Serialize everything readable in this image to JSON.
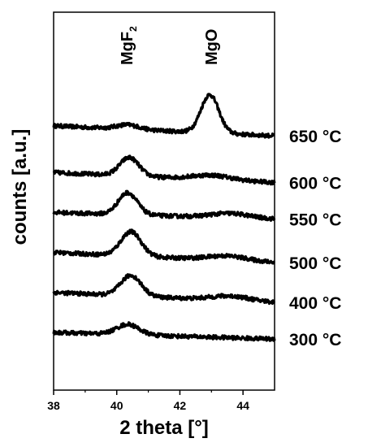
{
  "chart_data": {
    "type": "line",
    "xlabel": "2 theta [°]",
    "ylabel": "counts [a.u.]",
    "xlim": [
      38,
      45
    ],
    "x_ticks": [
      "38",
      "40",
      "42",
      "44"
    ],
    "y_ticks_shown": false,
    "grid": false,
    "legend": "none",
    "annotations": [
      {
        "text": "MgF",
        "subscript": "2",
        "x": 40.4
      },
      {
        "text": "MgO",
        "x": 43.0
      }
    ],
    "series": [
      {
        "name": "650 °C",
        "baseline": 0.72,
        "slope": -0.03,
        "peaks": [
          {
            "x": 40.35,
            "height": 0.06,
            "width": 0.35
          },
          {
            "x": 42.95,
            "height": 0.52,
            "width": 0.28
          }
        ]
      },
      {
        "name": "600 °C",
        "baseline": 0.58,
        "slope": -0.03,
        "peaks": [
          {
            "x": 40.4,
            "height": 0.25,
            "width": 0.3
          },
          {
            "x": 43.0,
            "height": 0.06,
            "width": 0.6
          }
        ]
      },
      {
        "name": "550 °C",
        "baseline": 0.46,
        "slope": -0.02,
        "peaks": [
          {
            "x": 40.35,
            "height": 0.3,
            "width": 0.3
          },
          {
            "x": 43.6,
            "height": 0.06,
            "width": 0.6
          }
        ]
      },
      {
        "name": "500 °C",
        "baseline": 0.34,
        "slope": -0.03,
        "peaks": [
          {
            "x": 40.45,
            "height": 0.33,
            "width": 0.32
          },
          {
            "x": 43.5,
            "height": 0.06,
            "width": 0.6
          }
        ]
      },
      {
        "name": "400 °C",
        "baseline": 0.22,
        "slope": -0.03,
        "peaks": [
          {
            "x": 40.45,
            "height": 0.28,
            "width": 0.32
          },
          {
            "x": 43.6,
            "height": 0.06,
            "width": 0.6
          }
        ]
      },
      {
        "name": "300 °C",
        "baseline": 0.1,
        "slope": -0.02,
        "peaks": [
          {
            "x": 40.35,
            "height": 0.14,
            "width": 0.35
          }
        ]
      }
    ]
  }
}
